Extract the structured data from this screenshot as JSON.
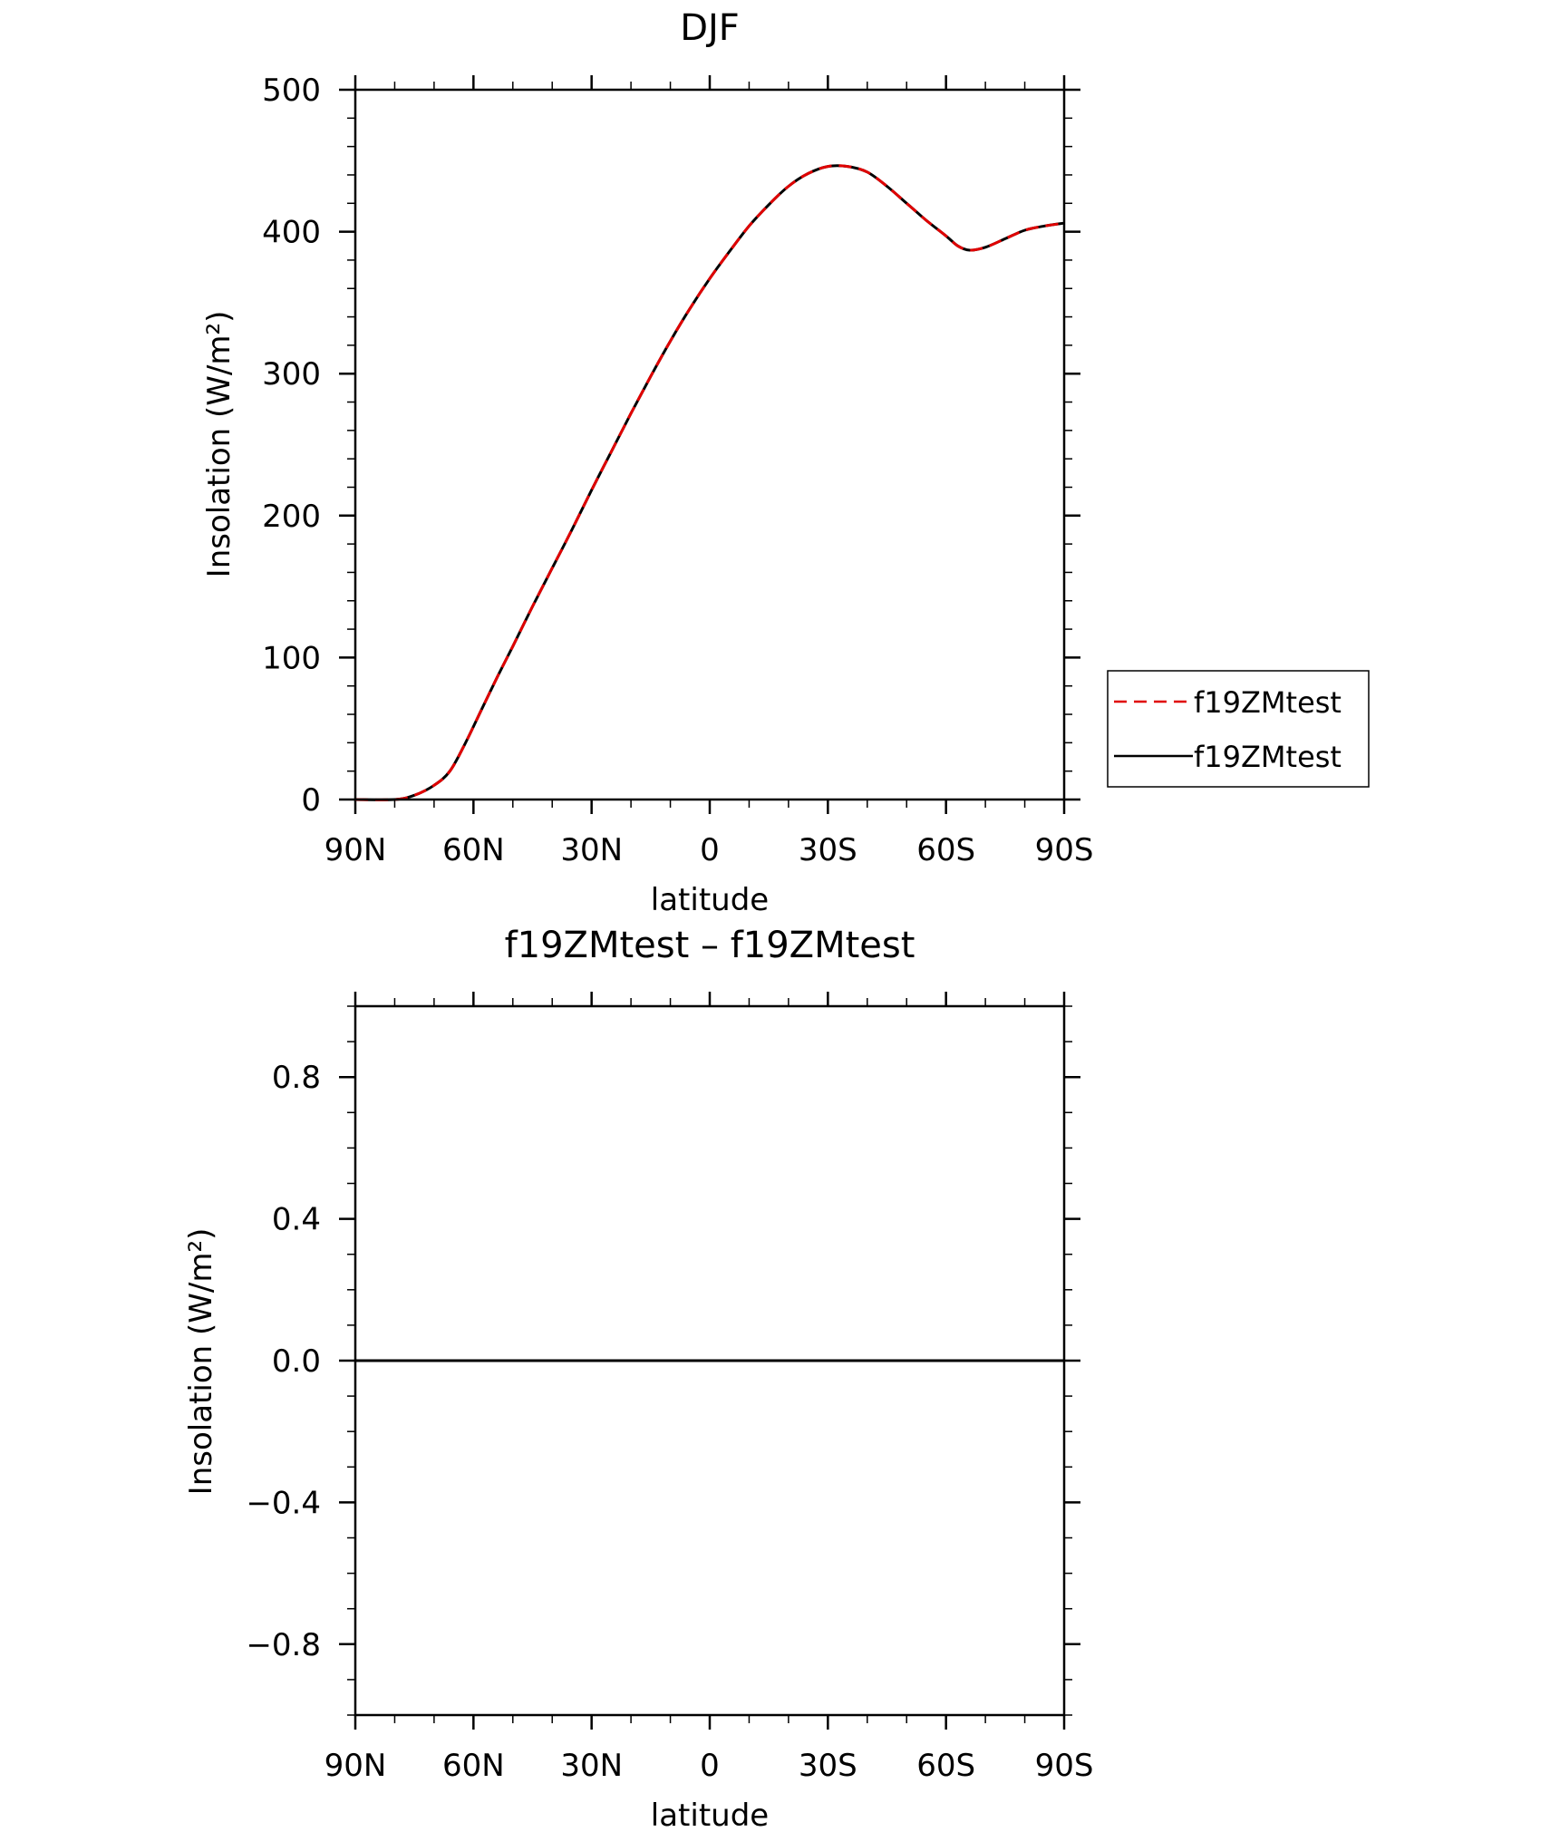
{
  "chart_data": [
    {
      "type": "line",
      "title": "DJF",
      "xlabel": "latitude",
      "ylabel": "Insolation  (W/m²)",
      "ylim": [
        0,
        500
      ],
      "xlim": [
        90,
        -90
      ],
      "x_ticks": [
        {
          "value": 90,
          "label": "90N"
        },
        {
          "value": 60,
          "label": "60N"
        },
        {
          "value": 30,
          "label": "30N"
        },
        {
          "value": 0,
          "label": "0"
        },
        {
          "value": -30,
          "label": "30S"
        },
        {
          "value": -60,
          "label": "60S"
        },
        {
          "value": -90,
          "label": "90S"
        }
      ],
      "y_ticks": [
        {
          "value": 0,
          "label": "0"
        },
        {
          "value": 100,
          "label": "100"
        },
        {
          "value": 200,
          "label": "200"
        },
        {
          "value": 300,
          "label": "300"
        },
        {
          "value": 400,
          "label": "400"
        },
        {
          "value": 500,
          "label": "500"
        }
      ],
      "legend_position": "right",
      "x": [
        90,
        80,
        75,
        70,
        66,
        62,
        58,
        54,
        50,
        45,
        40,
        35,
        30,
        25,
        20,
        15,
        10,
        5,
        0,
        -5,
        -10,
        -15,
        -20,
        -25,
        -30,
        -35,
        -40,
        -45,
        -50,
        -55,
        -60,
        -63,
        -66,
        -70,
        -75,
        -80,
        -85,
        -90
      ],
      "series": [
        {
          "name": "f19ZMtest",
          "color": "#e00000",
          "style": "dashed",
          "values": [
            0,
            0,
            3,
            10,
            20,
            40,
            63,
            86,
            108,
            136,
            163,
            190,
            218,
            245,
            272,
            298,
            323,
            346,
            367,
            386,
            404,
            419,
            432,
            441,
            446,
            446,
            442,
            432,
            420,
            408,
            397,
            390,
            387,
            389,
            395,
            401,
            404,
            406
          ]
        },
        {
          "name": "f19ZMtest",
          "color": "#000000",
          "style": "solid",
          "values": [
            0,
            0,
            3,
            10,
            20,
            40,
            63,
            86,
            108,
            136,
            163,
            190,
            218,
            245,
            272,
            298,
            323,
            346,
            367,
            386,
            404,
            419,
            432,
            441,
            446,
            446,
            442,
            432,
            420,
            408,
            397,
            390,
            387,
            389,
            395,
            401,
            404,
            406
          ]
        }
      ]
    },
    {
      "type": "line",
      "title": "f19ZMtest – f19ZMtest",
      "xlabel": "latitude",
      "ylabel": "Insolation  (W/m²)",
      "ylim": [
        -1,
        1
      ],
      "xlim": [
        90,
        -90
      ],
      "x_ticks": [
        {
          "value": 90,
          "label": "90N"
        },
        {
          "value": 60,
          "label": "60N"
        },
        {
          "value": 30,
          "label": "30N"
        },
        {
          "value": 0,
          "label": "0"
        },
        {
          "value": -30,
          "label": "30S"
        },
        {
          "value": -60,
          "label": "60S"
        },
        {
          "value": -90,
          "label": "90S"
        }
      ],
      "y_ticks": [
        {
          "value": -0.8,
          "label": "−0.8"
        },
        {
          "value": -0.4,
          "label": "−0.4"
        },
        {
          "value": 0,
          "label": "0.0"
        },
        {
          "value": 0.4,
          "label": "0.4"
        },
        {
          "value": 0.8,
          "label": "0.8"
        }
      ],
      "x": [
        90,
        -90
      ],
      "series": [
        {
          "color": "#000000",
          "style": "solid",
          "values": [
            0,
            0
          ]
        }
      ]
    }
  ]
}
